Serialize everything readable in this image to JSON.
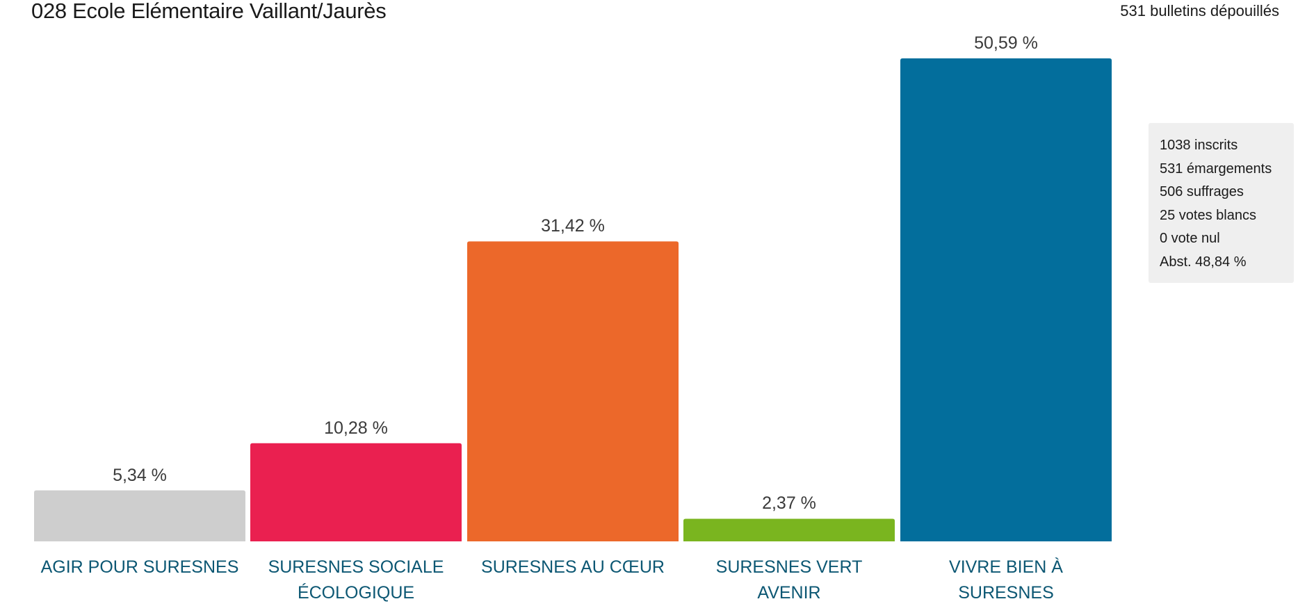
{
  "header": {
    "title": "028 Ecole Elémentaire Vaillant/Jaurès",
    "ballots_counted": "531 bulletins dépouillés"
  },
  "stats": [
    "1038 inscrits",
    "531 émargements",
    "506 suffrages",
    "25 votes blancs",
    "0 vote nul",
    "Abst. 48,84 %"
  ],
  "chart_data": {
    "type": "bar",
    "title": "028 Ecole Elémentaire Vaillant/Jaurès",
    "xlabel": "",
    "ylabel": "",
    "ylim": [
      0,
      50.59
    ],
    "grid": false,
    "categories": [
      "AGIR POUR SURESNES",
      "SURESNES SOCIALE ÉCOLOGIQUE",
      "SURESNES AU CŒUR",
      "SURESNES VERT AVENIR",
      "VIVRE BIEN À SURESNES"
    ],
    "values": [
      5.34,
      10.28,
      31.42,
      2.37,
      50.59
    ],
    "value_labels": [
      "5,34 %",
      "10,28 %",
      "31,42 %",
      "2,37 %",
      "50,59 %"
    ],
    "colors": [
      "#cecece",
      "#ea2050",
      "#ec682a",
      "#7ab51f",
      "#036e9c"
    ]
  }
}
